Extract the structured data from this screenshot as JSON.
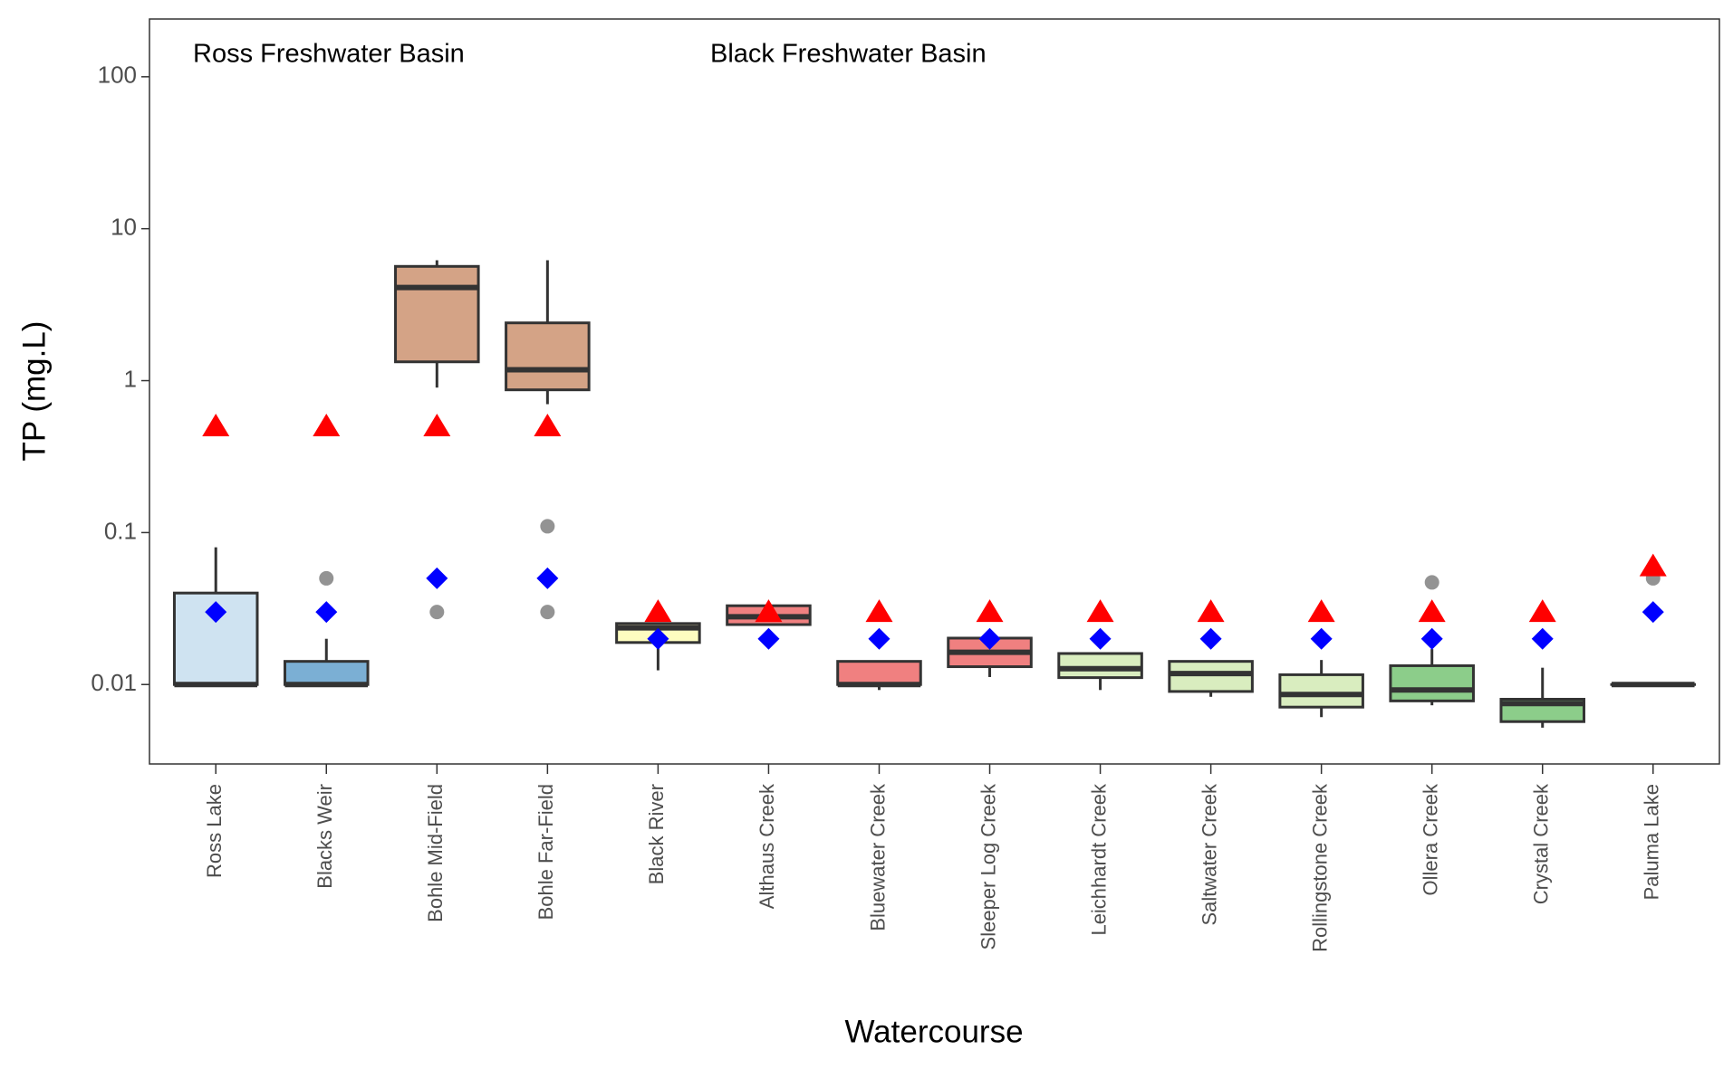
{
  "chart_data": {
    "type": "box",
    "x_label": "Watercourse",
    "y_label": "TP (mg.L)",
    "annotations": [
      "Ross Freshwater Basin",
      "Black Freshwater Basin"
    ],
    "categories": [
      "Ross Lake",
      "Blacks Weir",
      "Bohle Mid-Field",
      "Bohle Far-Field",
      "Black River",
      "Althaus Creek",
      "Bluewater Creek",
      "Sleeper Log Creek",
      "Leichhardt Creek",
      "Saltwater Creek",
      "Rollingstone Creek",
      "Ollera Creek",
      "Crystal Creek",
      "Paluma Lake"
    ],
    "boxes": [
      {
        "whislo": 0.01,
        "q1": 0.01,
        "med": 0.01,
        "q3": 0.04,
        "whishi": 0.08,
        "fliers": [],
        "color": "#cfe3f1"
      },
      {
        "whislo": 0.01,
        "q1": 0.01,
        "med": 0.01,
        "q3": 0.0142,
        "whishi": 0.02,
        "fliers": [
          0.05
        ],
        "color": "#7bafd4"
      },
      {
        "whislo": 0.9,
        "q1": 1.33,
        "med": 4.1,
        "q3": 5.65,
        "whishi": 6.2,
        "fliers": [
          0.03
        ],
        "color": "#d4a386"
      },
      {
        "whislo": 0.7,
        "q1": 0.87,
        "med": 1.18,
        "q3": 2.4,
        "whishi": 6.2,
        "fliers": [
          0.11,
          0.03
        ],
        "color": "#d4a386"
      },
      {
        "whislo": 0.0124,
        "q1": 0.0189,
        "med": 0.0236,
        "q3": 0.0252,
        "whishi": 0.0252,
        "fliers": [],
        "color": "#fdfcc0"
      },
      {
        "whislo": 0.0248,
        "q1": 0.0248,
        "med": 0.0279,
        "q3": 0.033,
        "whishi": 0.033,
        "fliers": [],
        "color": "#f08080"
      },
      {
        "whislo": 0.0092,
        "q1": 0.01,
        "med": 0.01,
        "q3": 0.0142,
        "whishi": 0.0142,
        "fliers": [],
        "color": "#f08080"
      },
      {
        "whislo": 0.0112,
        "q1": 0.0131,
        "med": 0.0163,
        "q3": 0.0202,
        "whishi": 0.0202,
        "fliers": [],
        "color": "#f08080"
      },
      {
        "whislo": 0.0092,
        "q1": 0.0111,
        "med": 0.0127,
        "q3": 0.016,
        "whishi": 0.016,
        "fliers": [],
        "color": "#d9edbf"
      },
      {
        "whislo": 0.0083,
        "q1": 0.009,
        "med": 0.0118,
        "q3": 0.0142,
        "whishi": 0.0142,
        "fliers": [],
        "color": "#d9edbf"
      },
      {
        "whislo": 0.0061,
        "q1": 0.0071,
        "med": 0.0086,
        "q3": 0.0116,
        "whishi": 0.0145,
        "fliers": [],
        "color": "#d9edbf"
      },
      {
        "whislo": 0.0073,
        "q1": 0.0078,
        "med": 0.0092,
        "q3": 0.0133,
        "whishi": 0.0171,
        "fliers": [
          0.047
        ],
        "color": "#8ccd8a"
      },
      {
        "whislo": 0.0052,
        "q1": 0.0057,
        "med": 0.0075,
        "q3": 0.008,
        "whishi": 0.0129,
        "fliers": [],
        "color": "#8ccd8a"
      },
      {
        "whislo": 0.01,
        "q1": 0.01,
        "med": 0.01,
        "q3": 0.01,
        "whishi": 0.01,
        "fliers": [
          0.05
        ],
        "color": "#8ccd8a"
      }
    ],
    "means": {
      "values": [
        0.03,
        0.03,
        0.05,
        0.05,
        0.02,
        0.02,
        0.02,
        0.02,
        0.02,
        0.02,
        0.02,
        0.02,
        0.02,
        0.03
      ],
      "color": "#0000ff"
    },
    "guidelines": {
      "values": [
        0.5,
        0.5,
        0.5,
        0.5,
        0.03,
        0.03,
        0.03,
        0.03,
        0.03,
        0.03,
        0.03,
        0.03,
        0.03,
        0.06
      ],
      "color": "#ff0000"
    },
    "flier_color": "#808080",
    "log_y": true,
    "ylim": [
      0.003,
      240
    ],
    "yticks": [
      0.01,
      0.1,
      1,
      10,
      100
    ],
    "grid": false
  }
}
